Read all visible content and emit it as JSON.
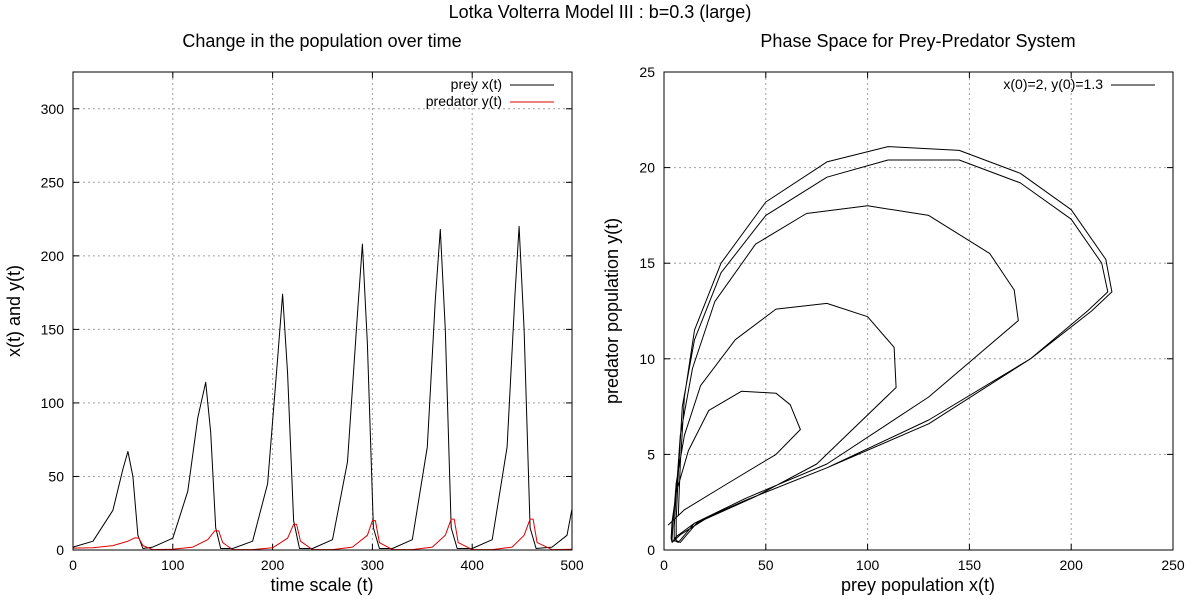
{
  "figure": {
    "suptitle": "Lotka Volterra Model III : b=0.3 (large)"
  },
  "chart_data": [
    {
      "type": "line",
      "title": "Change in the population over time",
      "xlabel": "time scale (t)",
      "ylabel": "x(t) and y(t)",
      "xlim": [
        0,
        500
      ],
      "ylim": [
        0,
        325
      ],
      "xticks": [
        0,
        100,
        200,
        300,
        400,
        500
      ],
      "yticks": [
        0,
        50,
        100,
        150,
        200,
        250,
        300
      ],
      "grid": true,
      "legend_position": "top-right",
      "series": [
        {
          "name": "prey x(t)",
          "color": "#000000",
          "peaks": [
            {
              "t": 55,
              "value": 67
            },
            {
              "t": 133,
              "value": 114
            },
            {
              "t": 210,
              "value": 174
            },
            {
              "t": 290,
              "value": 208
            },
            {
              "t": 368,
              "value": 218
            },
            {
              "t": 447,
              "value": 220
            }
          ],
          "x": [
            0,
            20,
            40,
            50,
            55,
            60,
            65,
            70,
            80,
            100,
            115,
            125,
            133,
            138,
            143,
            148,
            160,
            180,
            195,
            205,
            210,
            215,
            221,
            227,
            240,
            260,
            275,
            285,
            290,
            295,
            301,
            307,
            320,
            340,
            355,
            363,
            368,
            373,
            379,
            385,
            400,
            420,
            435,
            443,
            447,
            452,
            458,
            464,
            480,
            495,
            500
          ],
          "y": [
            2,
            6,
            27,
            55,
            67,
            50,
            10,
            1,
            2,
            8,
            40,
            90,
            114,
            80,
            15,
            1,
            1,
            6,
            45,
            130,
            174,
            120,
            20,
            1,
            1,
            7,
            60,
            160,
            208,
            140,
            15,
            1,
            1,
            7,
            70,
            170,
            218,
            150,
            15,
            1,
            1,
            7,
            70,
            175,
            220,
            150,
            15,
            1,
            2,
            10,
            28
          ]
        },
        {
          "name": "predator y(t)",
          "color": "#dd0000",
          "x": [
            0,
            20,
            40,
            55,
            62,
            66,
            70,
            80,
            100,
            120,
            135,
            142,
            146,
            150,
            160,
            180,
            200,
            215,
            221,
            224,
            228,
            240,
            260,
            280,
            295,
            300,
            303,
            307,
            320,
            340,
            360,
            373,
            379,
            382,
            386,
            400,
            420,
            440,
            452,
            458,
            461,
            465,
            480,
            500
          ],
          "y": [
            1.3,
            1.5,
            3,
            6,
            8.3,
            8,
            3,
            0.3,
            0.5,
            2,
            7,
            13,
            13,
            5,
            0.3,
            0.3,
            1.5,
            8,
            17.5,
            17.5,
            6,
            0.3,
            0.3,
            2,
            10,
            20,
            20,
            5,
            0.3,
            0.3,
            2,
            10,
            21,
            21,
            5,
            0.3,
            0.3,
            2,
            10,
            21,
            21,
            5,
            0.3,
            0.5
          ]
        }
      ]
    },
    {
      "type": "line",
      "title": "Phase Space for Prey-Predator System",
      "xlabel": "prey population x(t)",
      "ylabel": "predator population y(t)",
      "xlim": [
        0,
        250
      ],
      "ylim": [
        0,
        25
      ],
      "xticks": [
        0,
        50,
        100,
        150,
        200,
        250
      ],
      "yticks": [
        0,
        5,
        10,
        15,
        20,
        25
      ],
      "grid": true,
      "legend_position": "top-right",
      "series": [
        {
          "name": "x(0)=2, y(0)=1.3",
          "color": "#000000",
          "x": [
            2,
            10,
            30,
            55,
            67,
            62,
            55,
            38,
            22,
            12,
            6,
            4,
            3.5,
            4,
            8,
            20,
            45,
            75,
            114,
            113,
            100,
            80,
            55,
            35,
            18,
            10,
            6,
            4.5,
            4,
            4,
            6,
            15,
            40,
            80,
            130,
            174,
            172,
            160,
            130,
            100,
            70,
            45,
            25,
            14,
            8,
            6,
            5,
            5,
            7,
            15,
            40,
            80,
            130,
            180,
            208,
            218,
            215,
            200,
            175,
            145,
            110,
            80,
            50,
            28,
            15,
            9,
            7,
            6,
            6,
            8,
            16,
            40,
            80,
            130,
            180,
            210,
            220,
            217,
            200,
            175,
            145,
            110,
            80,
            50,
            28,
            15,
            10,
            8,
            7
          ],
          "y": [
            1.3,
            2.1,
            3.4,
            5.0,
            6.3,
            7.6,
            8.2,
            8.3,
            7.3,
            5.2,
            3.0,
            1.5,
            0.6,
            0.4,
            0.8,
            1.6,
            2.8,
            4.5,
            8.5,
            10.6,
            12.2,
            12.9,
            12.6,
            11.0,
            8.6,
            6.0,
            3.5,
            1.5,
            0.6,
            0.4,
            0.7,
            1.4,
            2.7,
            4.5,
            8.0,
            12.0,
            13.6,
            15.5,
            17.5,
            18.0,
            17.6,
            16.0,
            13.0,
            9.5,
            6.0,
            3.0,
            1.2,
            0.5,
            0.4,
            1.4,
            2.6,
            4.3,
            6.6,
            10.0,
            12.5,
            13.5,
            15.0,
            17.3,
            19.2,
            20.4,
            20.4,
            19.5,
            17.5,
            14.5,
            11.0,
            7.5,
            4.0,
            1.6,
            0.5,
            0.4,
            1.4,
            2.6,
            4.3,
            6.8,
            10.0,
            12.5,
            13.5,
            15.2,
            17.8,
            19.7,
            20.9,
            21.1,
            20.3,
            18.2,
            15.0,
            11.5,
            8.0,
            4.5,
            1.8
          ]
        }
      ]
    }
  ]
}
